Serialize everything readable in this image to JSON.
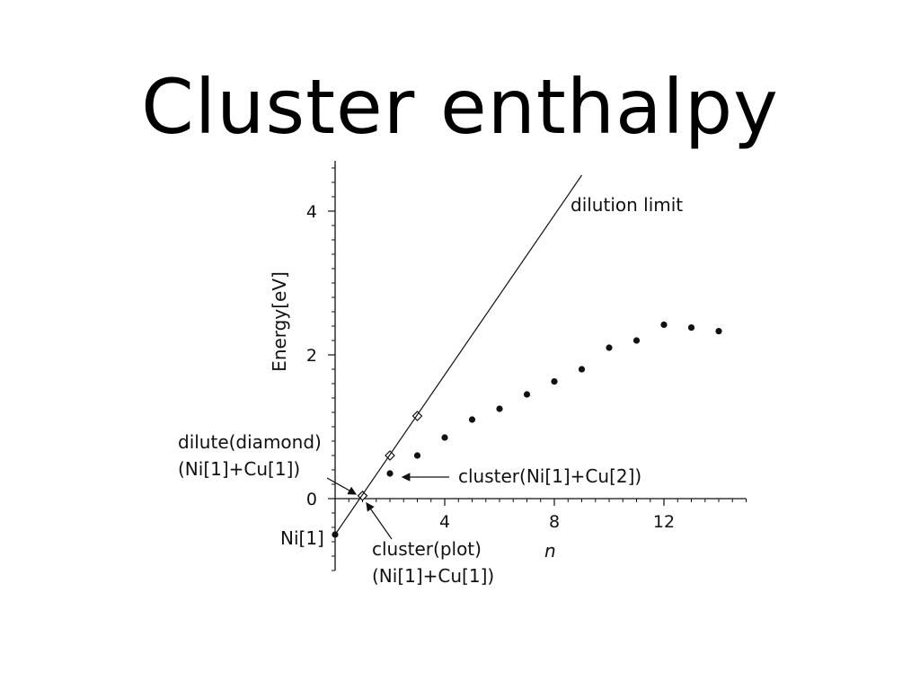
{
  "slide": {
    "title": "Cluster enthalpy"
  },
  "chart_data": {
    "type": "scatter",
    "xlabel": "n",
    "ylabel": "Energy[eV]",
    "xlim": [
      0,
      15
    ],
    "ylim": [
      -1,
      4.7
    ],
    "x_ticks": [
      4,
      8,
      12
    ],
    "y_ticks": [
      0,
      2,
      4
    ],
    "series": [
      {
        "marker": "dot",
        "points": [
          {
            "x": 0,
            "y": -0.5
          },
          {
            "x": 1,
            "y": 0.04
          },
          {
            "x": 2,
            "y": 0.35
          },
          {
            "x": 3,
            "y": 0.6
          },
          {
            "x": 4,
            "y": 0.85
          },
          {
            "x": 5,
            "y": 1.1
          },
          {
            "x": 6,
            "y": 1.25
          },
          {
            "x": 7,
            "y": 1.45
          },
          {
            "x": 8,
            "y": 1.63
          },
          {
            "x": 9,
            "y": 1.8
          },
          {
            "x": 10,
            "y": 2.1
          },
          {
            "x": 11,
            "y": 2.2
          },
          {
            "x": 12,
            "y": 2.42
          },
          {
            "x": 13,
            "y": 2.38
          },
          {
            "x": 14,
            "y": 2.33
          }
        ]
      },
      {
        "marker": "diamond",
        "points": [
          {
            "x": 1,
            "y": 0.04
          },
          {
            "x": 2,
            "y": 0.6
          },
          {
            "x": 3,
            "y": 1.15
          }
        ]
      },
      {
        "marker": "line",
        "points": [
          {
            "x": 0,
            "y": -0.5
          },
          {
            "x": 9,
            "y": 4.5
          }
        ]
      }
    ],
    "annotations": {
      "dilution_limit": "dilution limit",
      "dilute_diamond": "dilute(diamond)",
      "dilute_species": "(Ni[1]+Cu[1])",
      "cluster_ni1cu2": "cluster(Ni[1]+Cu[2])",
      "ni1": "Ni[1]",
      "cluster_plot": "cluster(plot)",
      "cluster_plot_species": "(Ni[1]+Cu[1])"
    },
    "grid": false,
    "legend": "none",
    "colors": {
      "ink": "#111111"
    }
  }
}
